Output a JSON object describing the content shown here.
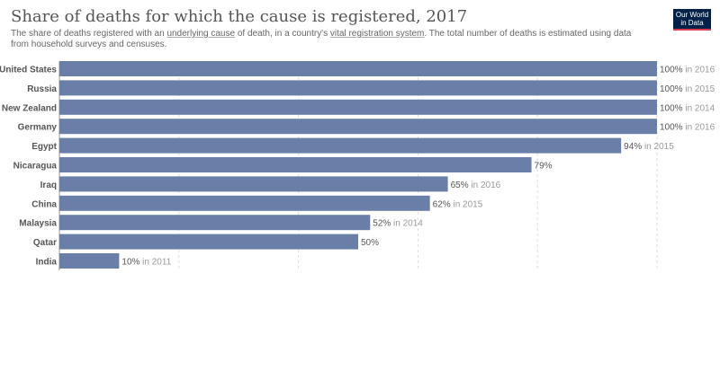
{
  "header": {
    "title": "Share of deaths for which the cause is registered, 2017",
    "subtitle_pre": "The share of deaths registered with an ",
    "subtitle_link1": "underlying cause",
    "subtitle_mid": " of death, in a country's ",
    "subtitle_link2": "vital registration system",
    "subtitle_post": ". The total number of deaths is estimated using data from household surveys and censuses.",
    "logo_line1": "Our World",
    "logo_line2": "in Data"
  },
  "colors": {
    "bar": "#6a7fa8",
    "grid": "#dddddd",
    "axis": "#999999",
    "year": "#999999"
  },
  "chart_data": {
    "type": "bar",
    "orientation": "horizontal",
    "title": "Share of deaths for which the cause is registered, 2017",
    "categories": [
      "United States",
      "Russia",
      "New Zealand",
      "Germany",
      "Egypt",
      "Nicaragua",
      "Iraq",
      "China",
      "Malaysia",
      "Qatar",
      "India"
    ],
    "values": [
      100,
      100,
      100,
      100,
      94,
      79,
      65,
      62,
      52,
      50,
      10
    ],
    "value_labels": [
      "100%",
      "100%",
      "100%",
      "100%",
      "94%",
      "79%",
      "65%",
      "62%",
      "52%",
      "50%",
      "10%"
    ],
    "year_labels": [
      "in 2016",
      "in 2015",
      "in 2014",
      "in 2016",
      "in 2015",
      "",
      "in 2016",
      "in 2015",
      "in 2014",
      "",
      "in 2011"
    ],
    "xlim": [
      0,
      100
    ],
    "gridlines": [
      20,
      40,
      60,
      80,
      100
    ],
    "grid": true
  }
}
